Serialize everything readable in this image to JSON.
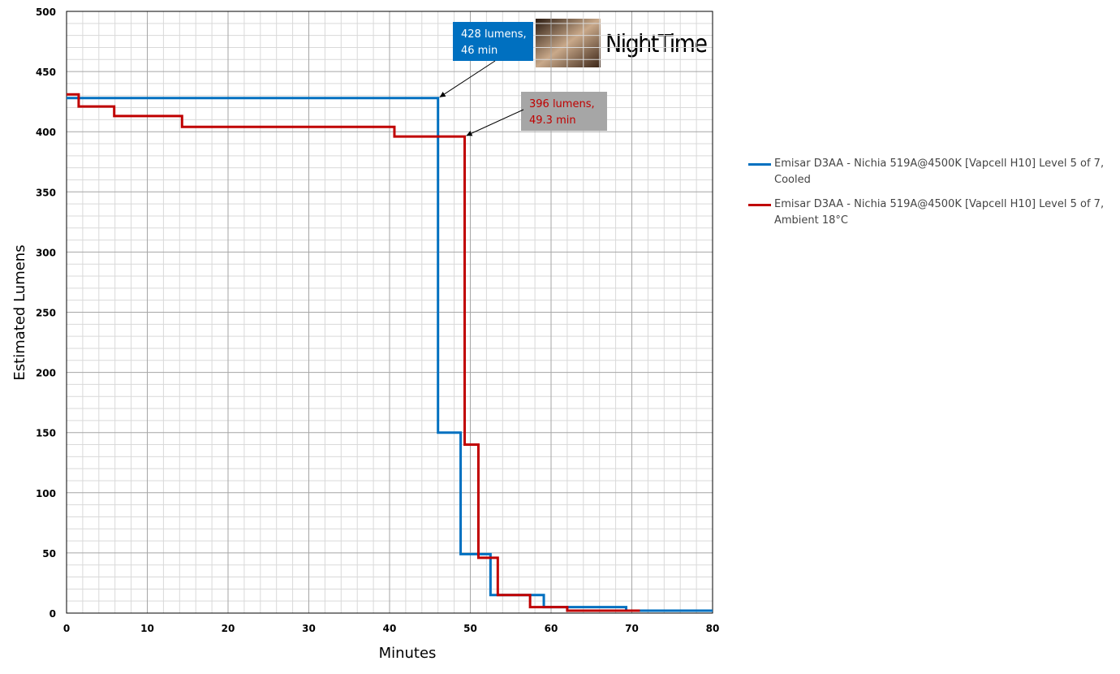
{
  "chart_data": {
    "type": "line",
    "x_label": "Minutes",
    "y_label": "Estimated Lumens",
    "xlim": [
      0,
      80
    ],
    "xticks": [
      0,
      10,
      20,
      30,
      40,
      50,
      60,
      70,
      80
    ],
    "ylim": [
      0,
      500
    ],
    "yticks": [
      0,
      50,
      100,
      150,
      200,
      250,
      300,
      350,
      400,
      450,
      500
    ],
    "grid": true,
    "legend": "right",
    "series": [
      {
        "name": "Emisar D3AA - Nichia 519A@4500K [Vapcell H10] Level 5 of 7, Cooled",
        "color": "#0070c0",
        "x": [
          0,
          46,
          46,
          48.8,
          48.8,
          52.5,
          52.5,
          59.1,
          59.1,
          69.3,
          69.3,
          80
        ],
        "values": [
          428,
          428,
          150,
          150,
          49,
          49,
          15,
          15,
          5,
          5,
          2,
          2
        ]
      },
      {
        "name": "Emisar D3AA - Nichia 519A@4500K [Vapcell H10] Level 5 of 7, Ambient 18°C",
        "color": "#c00000",
        "x": [
          0,
          1.5,
          1.5,
          5.9,
          5.9,
          14.3,
          14.3,
          40.6,
          40.6,
          49.3,
          49.3,
          51,
          51,
          53.4,
          53.4,
          57.4,
          57.4,
          62,
          62,
          71
        ],
        "values": [
          431,
          431,
          421,
          421,
          413,
          413,
          404,
          404,
          396,
          396,
          140,
          140,
          46,
          46,
          15,
          15,
          5,
          5,
          2,
          2
        ]
      }
    ],
    "annotations": [
      {
        "lines": [
          "428 lumens,",
          "46 min"
        ],
        "x": 46,
        "y": 428,
        "color": "#0070c0",
        "text_color": "#ffffff"
      },
      {
        "lines": [
          "396 lumens,",
          "49.3 min"
        ],
        "x": 49.3,
        "y": 396,
        "color": "#a6a6a6",
        "text_color": "#c00000"
      }
    ],
    "logo_text": "NightTime"
  }
}
